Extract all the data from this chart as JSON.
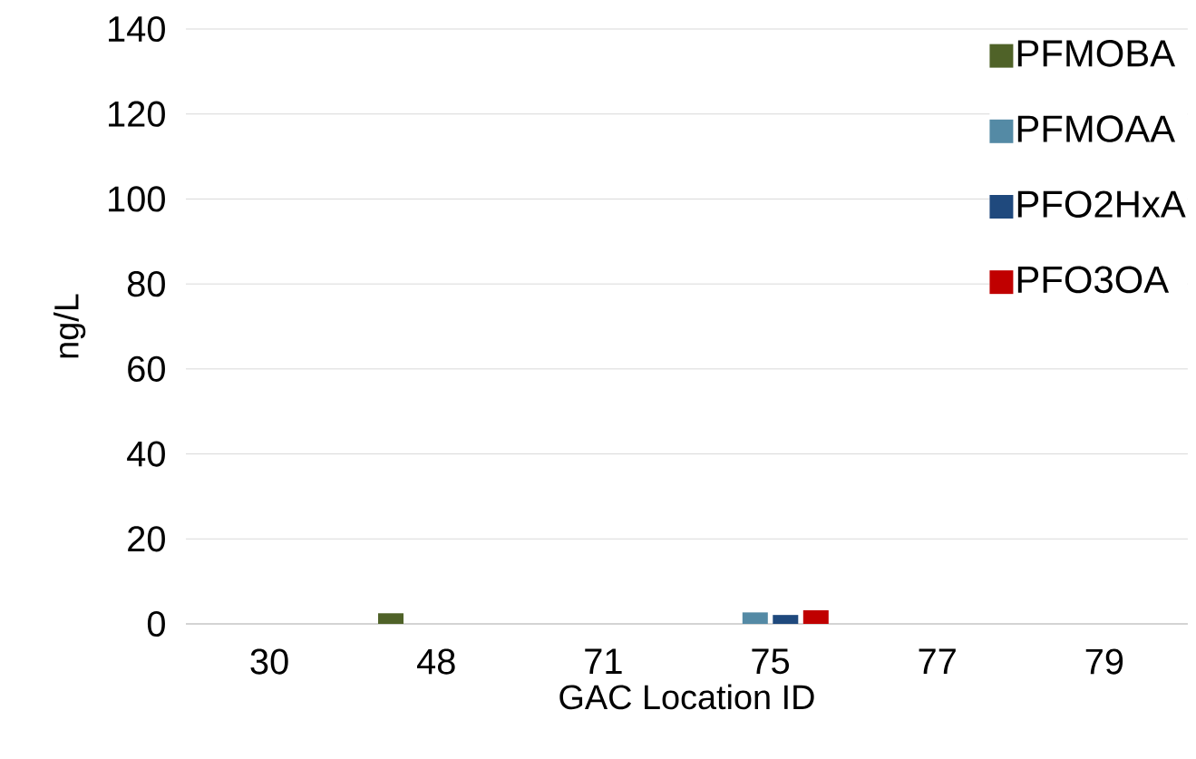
{
  "chart_data": {
    "type": "bar",
    "xlabel": "GAC Location ID",
    "ylabel": "ng/L",
    "categories": [
      "30",
      "48",
      "71",
      "75",
      "77",
      "79"
    ],
    "series": [
      {
        "name": "PFMOBA",
        "color": "#4f6228",
        "values": [
          null,
          2.5,
          null,
          null,
          null,
          null
        ]
      },
      {
        "name": "PFMOAA",
        "color": "#548aa5",
        "values": [
          null,
          null,
          null,
          2.7,
          null,
          null
        ]
      },
      {
        "name": "PFO2HxA",
        "color": "#1f497d",
        "values": [
          null,
          null,
          null,
          2.1,
          null,
          null
        ]
      },
      {
        "name": "PFO3OA",
        "color": "#c00000",
        "values": [
          null,
          null,
          null,
          3.2,
          null,
          null
        ]
      }
    ],
    "ylim": [
      0,
      140
    ],
    "yticks": [
      0,
      20,
      40,
      60,
      80,
      100,
      120,
      140
    ],
    "grid": "y",
    "legend": "top right"
  }
}
